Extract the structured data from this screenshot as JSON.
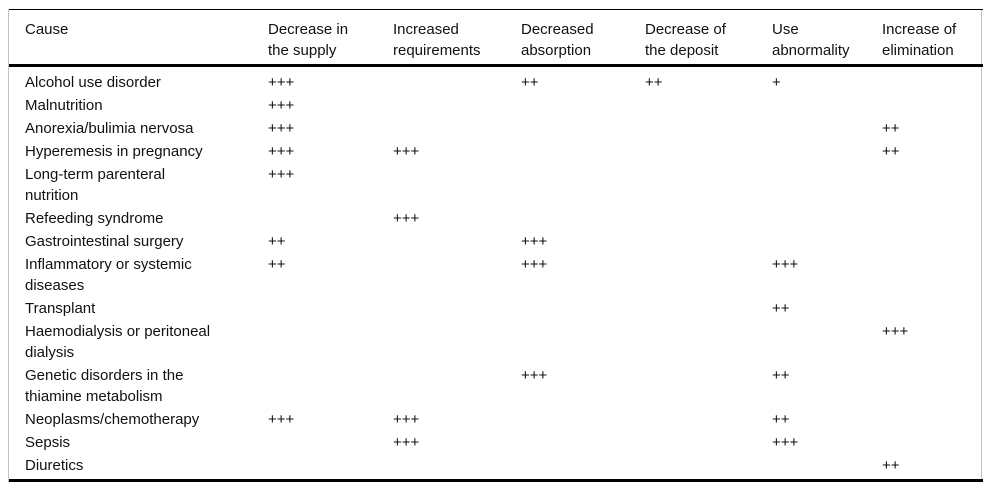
{
  "table": {
    "header": [
      "Cause",
      "Decrease in the supply",
      "Increased requirements",
      "Decreased absorption",
      "Decrease of the deposit",
      "Use abnormality",
      "Increase of elimination"
    ],
    "rows": [
      {
        "cause": "Alcohol use disorder",
        "values": [
          "+++",
          "",
          "++",
          "++",
          "+",
          ""
        ]
      },
      {
        "cause": "Malnutrition",
        "values": [
          "+++",
          "",
          "",
          "",
          "",
          ""
        ]
      },
      {
        "cause": "Anorexia/bulimia nervosa",
        "values": [
          "+++",
          "",
          "",
          "",
          "",
          "++"
        ]
      },
      {
        "cause": "Hyperemesis in pregnancy",
        "values": [
          "+++",
          "+++",
          "",
          "",
          "",
          "++"
        ]
      },
      {
        "cause": "Long-term parenteral nutrition",
        "values": [
          "+++",
          "",
          "",
          "",
          "",
          ""
        ]
      },
      {
        "cause": "Refeeding syndrome",
        "values": [
          "",
          "+++",
          "",
          "",
          "",
          ""
        ]
      },
      {
        "cause": "Gastrointestinal surgery",
        "values": [
          "++",
          "",
          "+++",
          "",
          "",
          ""
        ]
      },
      {
        "cause": "Inflammatory or systemic diseases",
        "values": [
          "++",
          "",
          "+++",
          "",
          "+++",
          ""
        ]
      },
      {
        "cause": "Transplant",
        "values": [
          "",
          "",
          "",
          "",
          "++",
          ""
        ]
      },
      {
        "cause": "Haemodialysis or peritoneal dialysis",
        "values": [
          "",
          "",
          "",
          "",
          "",
          "+++"
        ]
      },
      {
        "cause": "Genetic disorders in the thiamine metabolism",
        "values": [
          "",
          "",
          "+++",
          "",
          "++",
          ""
        ]
      },
      {
        "cause": "Neoplasms/chemotherapy",
        "values": [
          "+++",
          "+++",
          "",
          "",
          "++",
          ""
        ]
      },
      {
        "cause": "Sepsis",
        "values": [
          "",
          "+++",
          "",
          "",
          "+++",
          ""
        ]
      },
      {
        "cause": "Diuretics",
        "values": [
          "",
          "",
          "",
          "",
          "",
          "++"
        ]
      }
    ]
  },
  "colors": {
    "background": "#ffffff",
    "text": "#111111",
    "rule": "#000000",
    "frame_border": "#c3c3c3"
  }
}
